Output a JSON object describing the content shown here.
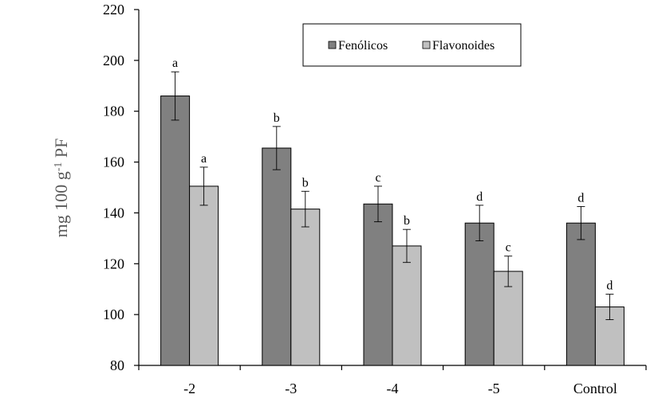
{
  "chart_data": {
    "type": "bar",
    "title": "",
    "xlabel": "",
    "ylabel_main": "mg 100 g",
    "ylabel_sup": "-1",
    "ylabel_tail": " PF",
    "ylim": [
      80,
      220
    ],
    "yticks": [
      80,
      100,
      120,
      140,
      160,
      180,
      200,
      220
    ],
    "categories": [
      "-2",
      "-3",
      "-4",
      "-5",
      "Control"
    ],
    "legend_position": "top-right",
    "grid": false,
    "series": [
      {
        "name": "Fenólicos",
        "color": "#808080",
        "values": [
          186,
          165.5,
          143.5,
          136,
          136
        ],
        "errors": [
          9.5,
          8.5,
          7,
          7,
          6.5
        ],
        "labels": [
          "a",
          "b",
          "c",
          "d",
          "d"
        ]
      },
      {
        "name": "Flavonoides",
        "color": "#c0c0c0",
        "values": [
          150.5,
          141.5,
          127,
          117,
          103
        ],
        "errors": [
          7.5,
          7,
          6.5,
          6,
          5
        ],
        "labels": [
          "a",
          "b",
          "b",
          "c",
          "d"
        ]
      }
    ]
  }
}
